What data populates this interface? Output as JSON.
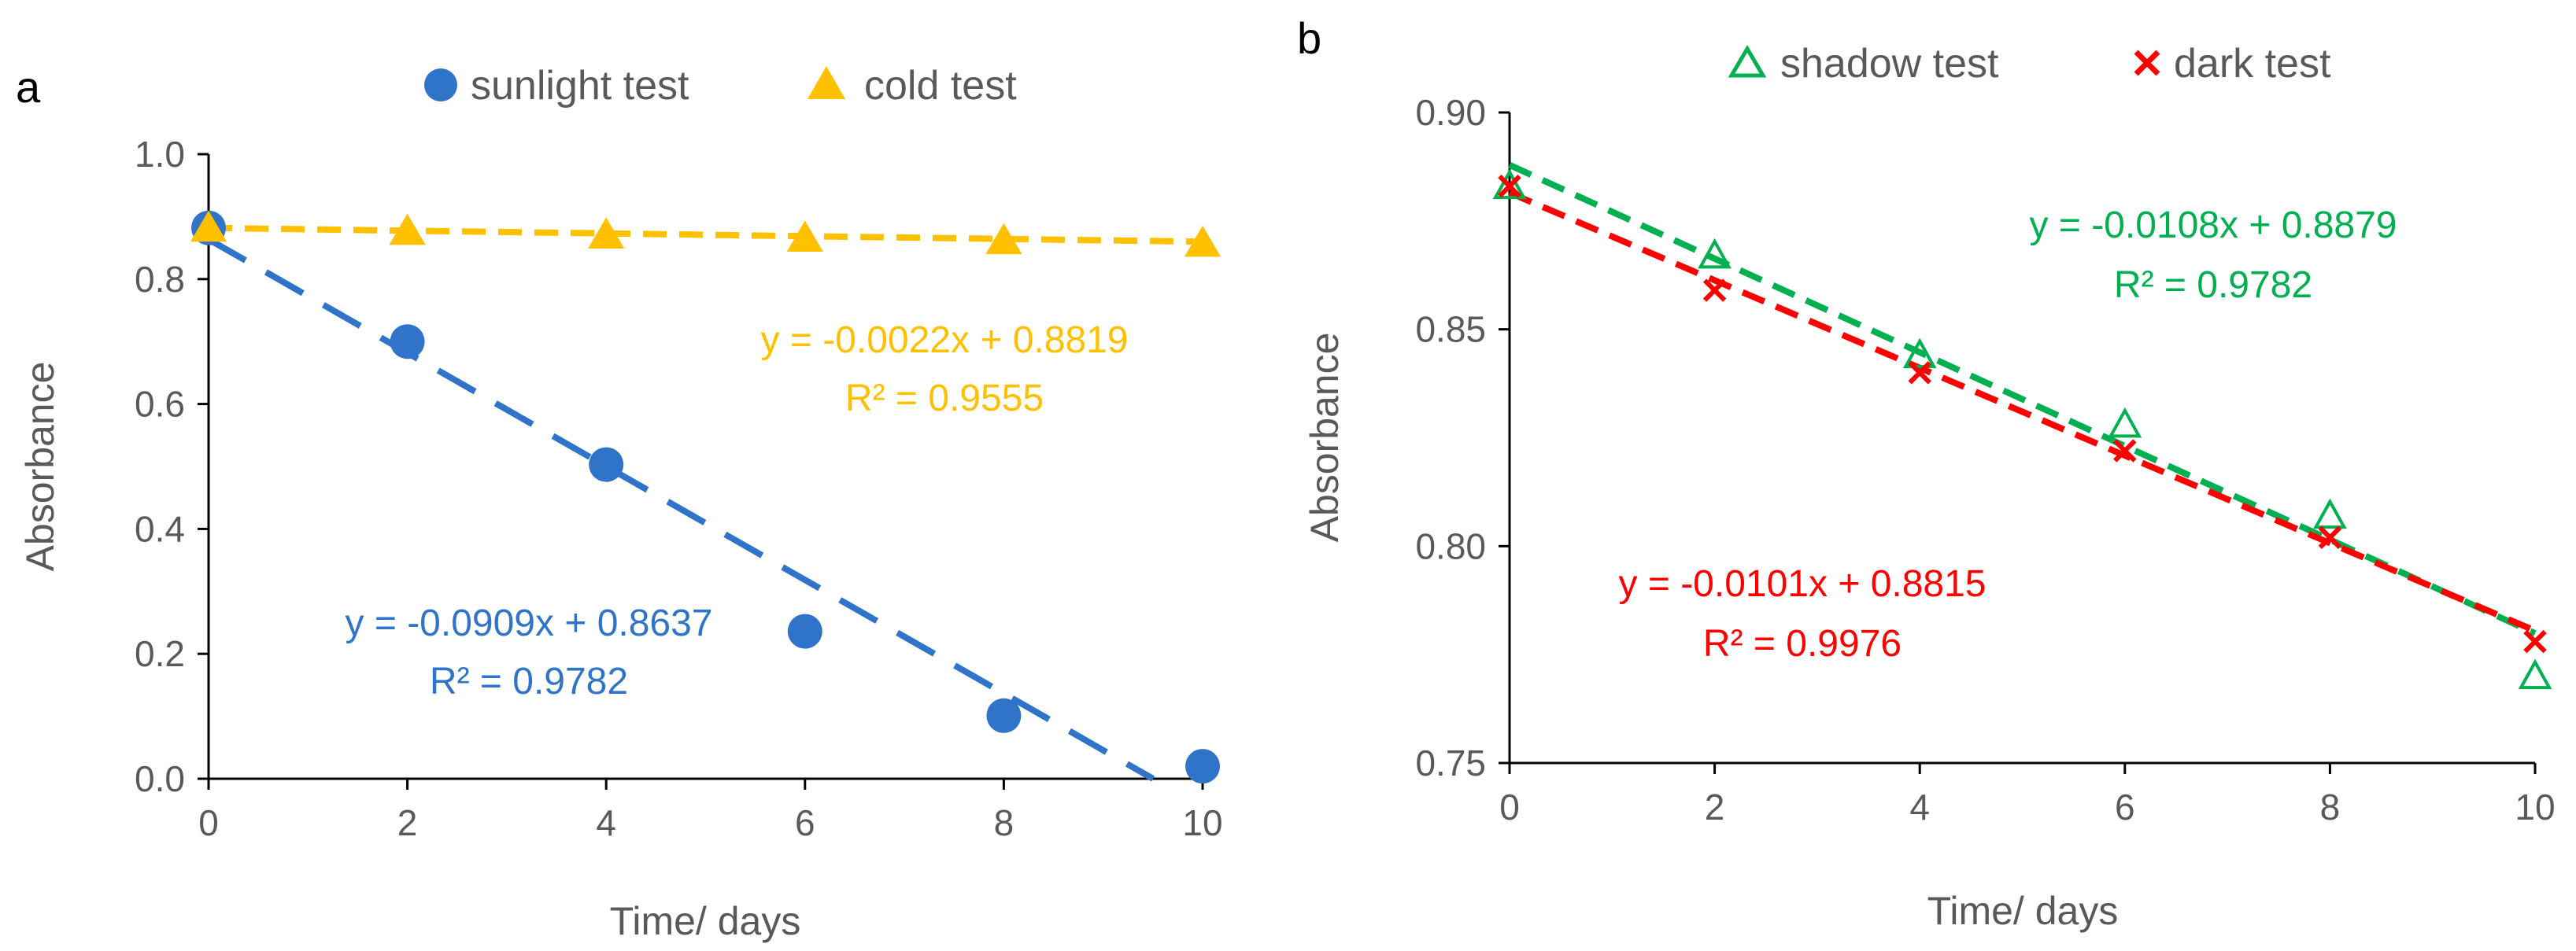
{
  "chart_data": [
    {
      "panel": "a",
      "type": "scatter",
      "xlabel": "Time/ days",
      "ylabel": "Absorbance",
      "xlim": [
        0,
        10
      ],
      "ylim": [
        0,
        1.0
      ],
      "x_ticks": [
        0,
        2,
        4,
        6,
        8,
        10
      ],
      "y_ticks": [
        0,
        0.2,
        0.4,
        0.6,
        0.8,
        1.0
      ],
      "y_tick_labels": [
        "0.0",
        "0.2",
        "0.4",
        "0.6",
        "0.8",
        "1.0"
      ],
      "legend_position": "top",
      "grid": false,
      "series": [
        {
          "name": "sunlight test",
          "marker": "circle",
          "color": "#2F74C9",
          "x": [
            0,
            2,
            4,
            6,
            8,
            10
          ],
          "y": [
            0.882,
            0.7,
            0.503,
            0.236,
            0.101,
            0.02
          ],
          "trendline": {
            "slope": -0.0909,
            "intercept": 0.8637,
            "style": "long-dash"
          },
          "equation": "y = -0.0909x + 0.8637",
          "r2": "R² = 0.9782"
        },
        {
          "name": "cold test",
          "marker": "triangle",
          "color": "#FFC000",
          "x": [
            0,
            2,
            4,
            6,
            8,
            10
          ],
          "y": [
            0.882,
            0.877,
            0.871,
            0.866,
            0.862,
            0.858
          ],
          "trendline": {
            "slope": -0.0022,
            "intercept": 0.8819,
            "style": "dash"
          },
          "equation": "y = -0.0022x + 0.8819",
          "r2": "R² = 0.9555"
        }
      ]
    },
    {
      "panel": "b",
      "type": "scatter",
      "xlabel": "Time/ days",
      "ylabel": "Absorbance",
      "xlim": [
        0,
        10
      ],
      "ylim": [
        0.75,
        0.9
      ],
      "x_ticks": [
        0,
        2,
        4,
        6,
        8,
        10
      ],
      "y_ticks": [
        0.75,
        0.8,
        0.85,
        0.9
      ],
      "y_tick_labels": [
        "0.75",
        "0.80",
        "0.85",
        "0.90"
      ],
      "legend_position": "top",
      "grid": false,
      "series": [
        {
          "name": "shadow test",
          "marker": "triangle-open",
          "color": "#00B050",
          "x": [
            0,
            2,
            4,
            6,
            8,
            10
          ],
          "y": [
            0.883,
            0.867,
            0.844,
            0.828,
            0.807,
            0.77
          ],
          "trendline": {
            "slope": -0.0108,
            "intercept": 0.8879,
            "style": "dash"
          },
          "equation": "y = -0.0108x + 0.8879",
          "r2": "R² = 0.9782"
        },
        {
          "name": "dark test",
          "marker": "x",
          "color": "#FF0000",
          "x": [
            0,
            2,
            4,
            6,
            8,
            10
          ],
          "y": [
            0.883,
            0.859,
            0.84,
            0.822,
            0.802,
            0.778
          ],
          "trendline": {
            "slope": -0.0101,
            "intercept": 0.8815,
            "style": "dash"
          },
          "equation": "y = -0.0101x + 0.8815",
          "r2": "R² = 0.9976"
        }
      ]
    }
  ]
}
